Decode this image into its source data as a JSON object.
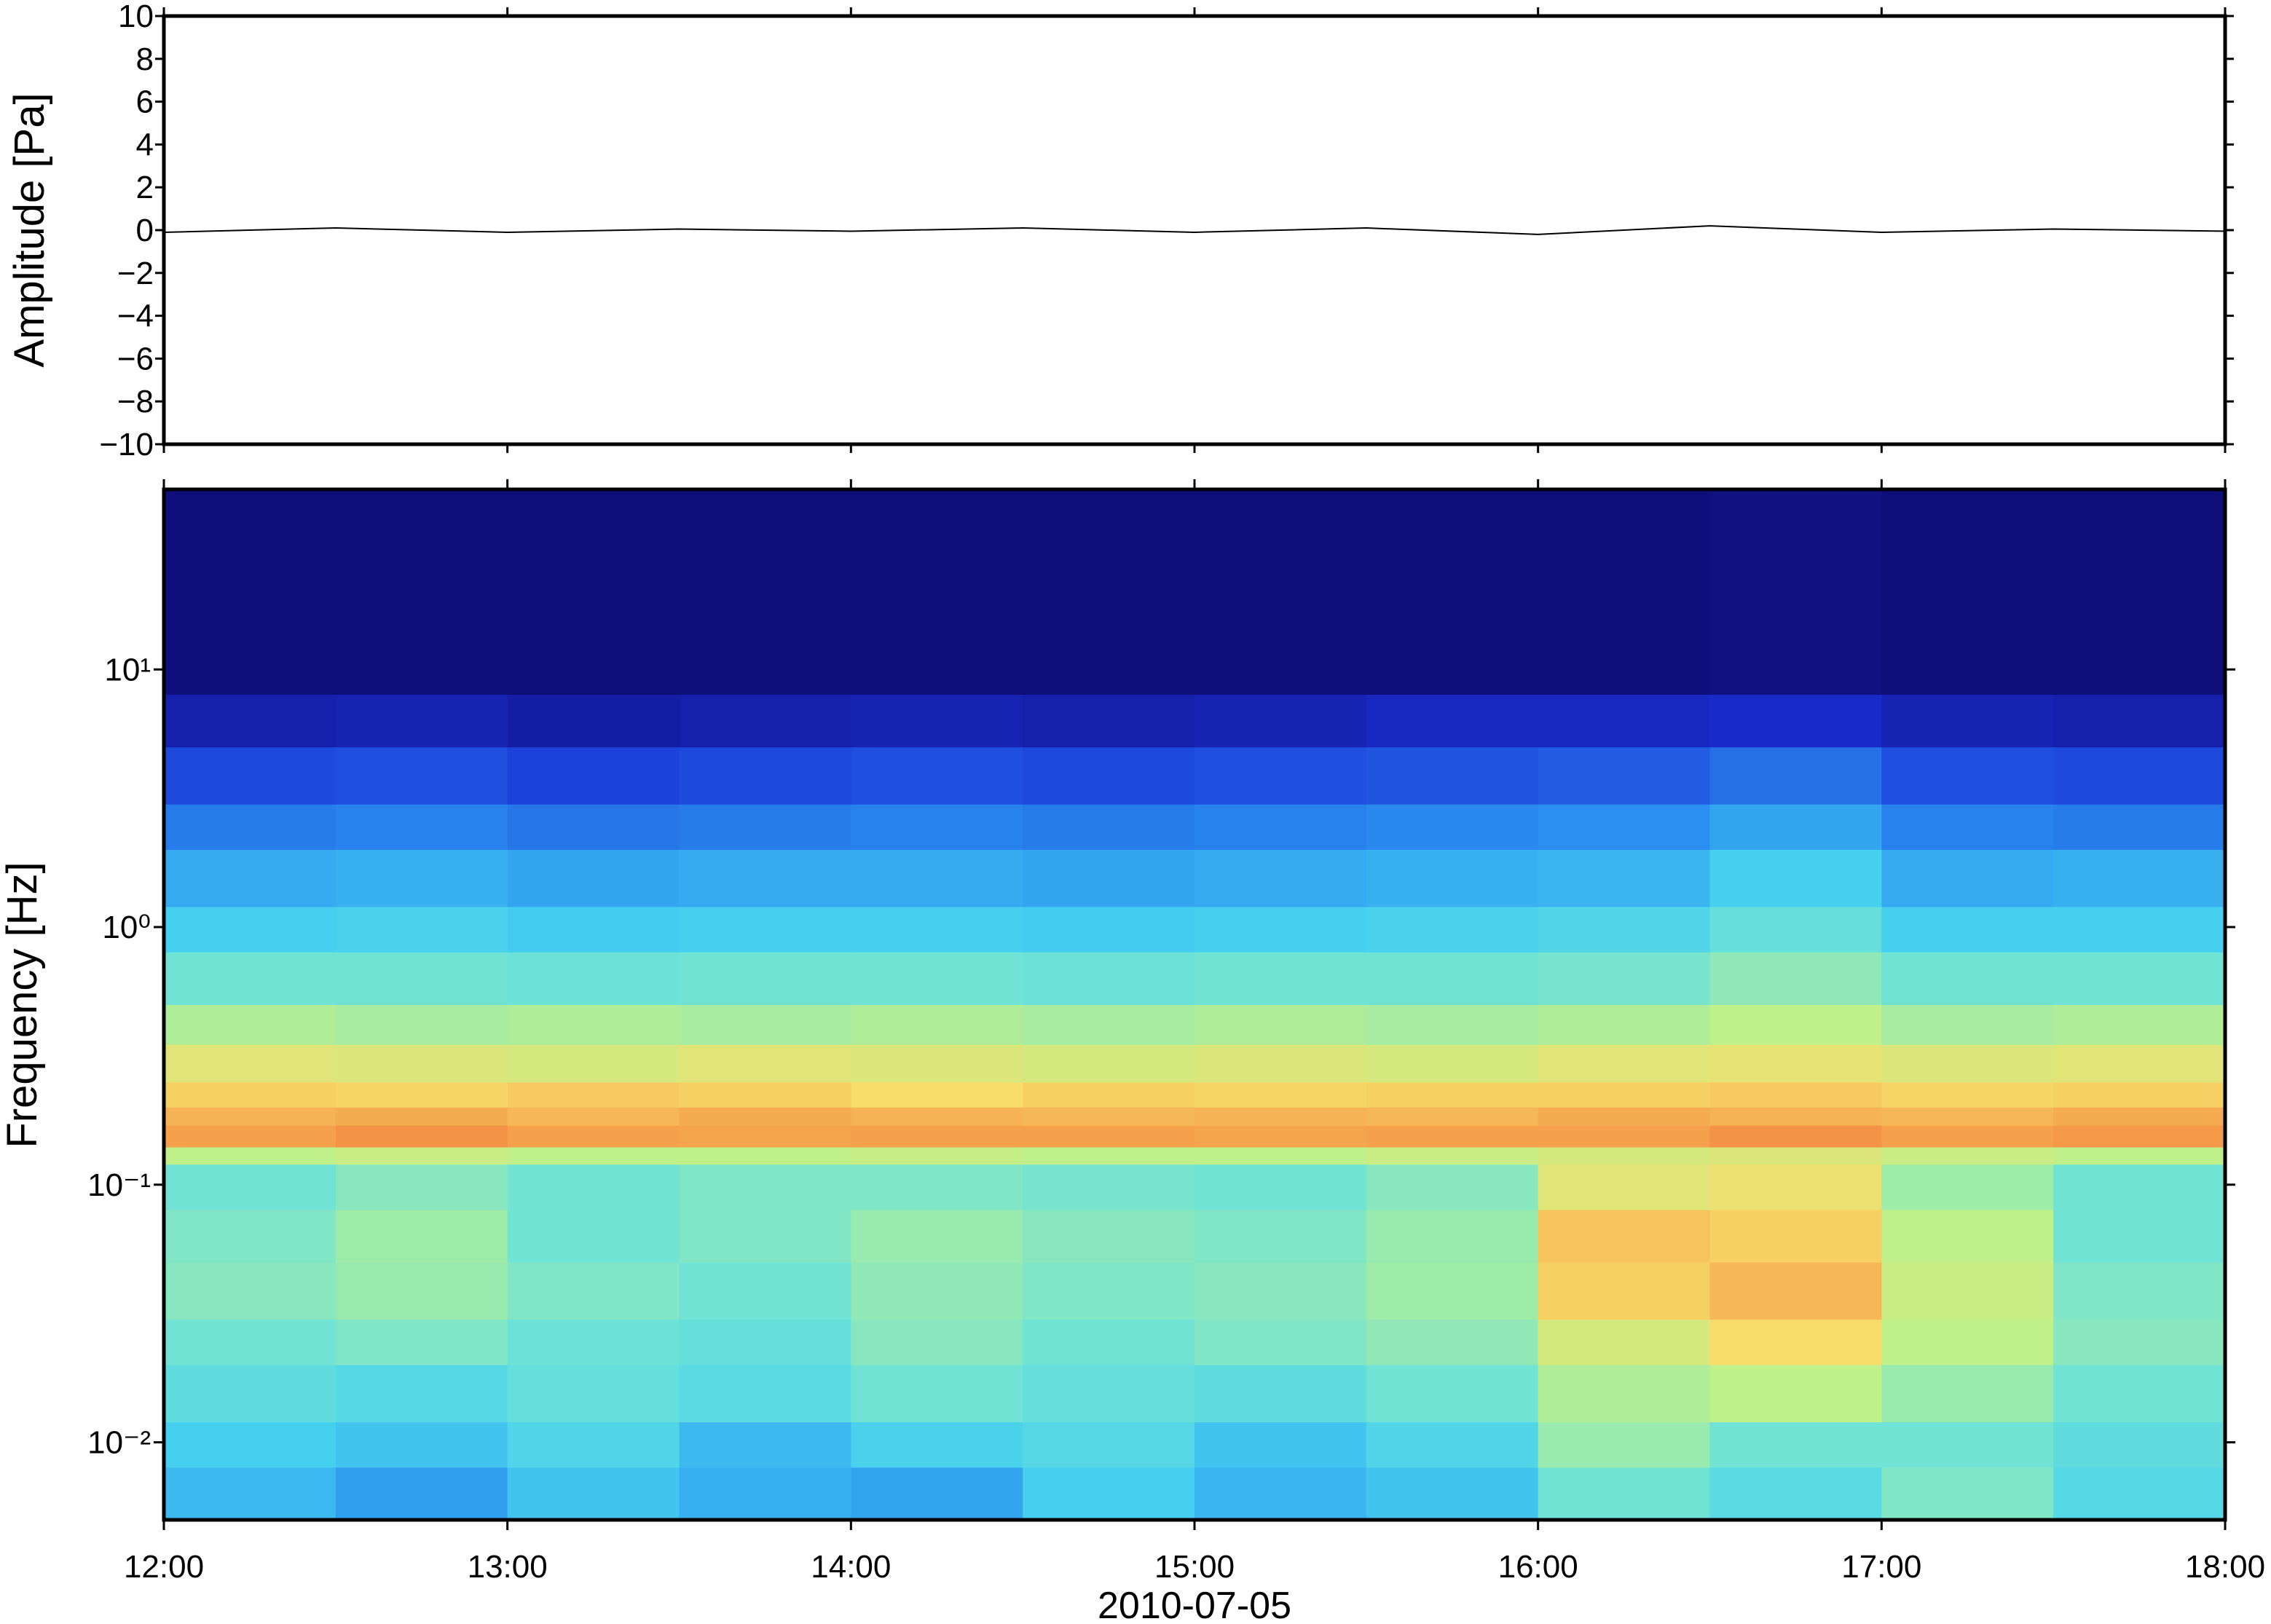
{
  "chart_data": [
    {
      "type": "line",
      "ylabel": "Amplitude [Pa]",
      "color": "#000000",
      "x": [
        12,
        12.5,
        13,
        13.5,
        14,
        14.5,
        15,
        15.5,
        16,
        16.5,
        17,
        17.5,
        18
      ],
      "values": [
        -0.1,
        0.1,
        -0.1,
        0.05,
        -0.05,
        0.1,
        -0.1,
        0.1,
        -0.2,
        0.2,
        -0.1,
        0.05,
        -0.05
      ],
      "xlim": [
        12,
        18
      ],
      "ylim": [
        -10,
        10
      ],
      "yticks": [
        {
          "value": -10,
          "label": "−10"
        },
        {
          "value": -8,
          "label": "−8"
        },
        {
          "value": -6,
          "label": "−6"
        },
        {
          "value": -4,
          "label": "−4"
        },
        {
          "value": -2,
          "label": "−2"
        },
        0,
        2,
        4,
        6,
        8,
        10
      ]
    },
    {
      "type": "heatmap",
      "ylabel": "Frequency [Hz]",
      "xlabel": "2010-07-05",
      "log_y": true,
      "xlim": [
        12,
        18
      ],
      "ylim": [
        0.005,
        50
      ],
      "xticks": [
        {
          "value": 12,
          "label": "12:00"
        },
        {
          "value": 13,
          "label": "13:00"
        },
        {
          "value": 14,
          "label": "14:00"
        },
        {
          "value": 15,
          "label": "15:00"
        },
        {
          "value": 16,
          "label": "16:00"
        },
        {
          "value": 17,
          "label": "17:00"
        },
        {
          "value": 18,
          "label": "18:00"
        }
      ],
      "yticks": [
        {
          "value": 0.01,
          "label": "10⁻²"
        },
        {
          "value": 0.1,
          "label": "10⁻¹"
        },
        {
          "value": 1,
          "label": "10⁰"
        },
        {
          "value": 10,
          "label": "10¹"
        }
      ],
      "colorscale": [
        [
          0,
          "#0d0a6e"
        ],
        [
          0.15,
          "#1a2fd6"
        ],
        [
          0.3,
          "#2a8ff0"
        ],
        [
          0.42,
          "#45d0f0"
        ],
        [
          0.5,
          "#70e3d5"
        ],
        [
          0.6,
          "#bff08a"
        ],
        [
          0.7,
          "#f7dc6a"
        ],
        [
          0.8,
          "#f5a04a"
        ],
        [
          0.9,
          "#ee5a2f"
        ],
        [
          1,
          "#c81e1e"
        ]
      ],
      "x_edges": [
        12,
        12.5,
        13,
        13.5,
        14,
        14.5,
        15,
        15.5,
        16,
        16.5,
        17,
        17.5,
        18
      ],
      "y_edges": [
        0.005,
        0.008,
        0.012,
        0.02,
        0.03,
        0.05,
        0.08,
        0.12,
        0.14,
        0.17,
        0.2,
        0.25,
        0.35,
        0.5,
        0.8,
        1.2,
        2,
        3,
        5,
        8,
        50
      ],
      "z": [
        [
          0.38,
          0.33,
          0.4,
          0.36,
          0.34,
          0.42,
          0.37,
          0.4,
          0.5,
          0.46,
          0.52,
          0.45
        ],
        [
          0.42,
          0.4,
          0.44,
          0.38,
          0.43,
          0.45,
          0.4,
          0.44,
          0.55,
          0.5,
          0.5,
          0.47
        ],
        [
          0.47,
          0.45,
          0.48,
          0.46,
          0.5,
          0.48,
          0.47,
          0.5,
          0.58,
          0.6,
          0.55,
          0.5
        ],
        [
          0.5,
          0.52,
          0.49,
          0.48,
          0.53,
          0.5,
          0.52,
          0.54,
          0.64,
          0.7,
          0.6,
          0.53
        ],
        [
          0.53,
          0.55,
          0.52,
          0.5,
          0.54,
          0.52,
          0.53,
          0.56,
          0.72,
          0.76,
          0.62,
          0.52
        ],
        [
          0.52,
          0.56,
          0.5,
          0.52,
          0.55,
          0.53,
          0.52,
          0.55,
          0.74,
          0.72,
          0.6,
          0.5
        ],
        [
          0.5,
          0.53,
          0.5,
          0.52,
          0.52,
          0.51,
          0.5,
          0.53,
          0.66,
          0.68,
          0.56,
          0.5
        ],
        [
          0.6,
          0.62,
          0.6,
          0.6,
          0.61,
          0.6,
          0.6,
          0.62,
          0.64,
          0.65,
          0.62,
          0.6
        ],
        [
          0.8,
          0.82,
          0.8,
          0.79,
          0.8,
          0.8,
          0.79,
          0.8,
          0.8,
          0.82,
          0.8,
          0.81
        ],
        [
          0.77,
          0.78,
          0.76,
          0.78,
          0.77,
          0.76,
          0.77,
          0.76,
          0.78,
          0.77,
          0.76,
          0.78
        ],
        [
          0.72,
          0.71,
          0.73,
          0.72,
          0.7,
          0.72,
          0.71,
          0.72,
          0.72,
          0.73,
          0.71,
          0.72
        ],
        [
          0.66,
          0.65,
          0.64,
          0.66,
          0.65,
          0.64,
          0.65,
          0.64,
          0.66,
          0.67,
          0.65,
          0.66
        ],
        [
          0.58,
          0.57,
          0.58,
          0.57,
          0.58,
          0.57,
          0.58,
          0.57,
          0.58,
          0.6,
          0.57,
          0.58
        ],
        [
          0.5,
          0.5,
          0.49,
          0.5,
          0.5,
          0.49,
          0.5,
          0.5,
          0.51,
          0.54,
          0.5,
          0.5
        ],
        [
          0.42,
          0.43,
          0.41,
          0.42,
          0.42,
          0.41,
          0.42,
          0.43,
          0.44,
          0.48,
          0.42,
          0.42
        ],
        [
          0.35,
          0.36,
          0.34,
          0.35,
          0.35,
          0.34,
          0.35,
          0.36,
          0.37,
          0.42,
          0.35,
          0.36
        ],
        [
          0.27,
          0.28,
          0.26,
          0.27,
          0.28,
          0.27,
          0.28,
          0.29,
          0.3,
          0.34,
          0.28,
          0.27
        ],
        [
          0.19,
          0.2,
          0.18,
          0.19,
          0.2,
          0.19,
          0.2,
          0.21,
          0.22,
          0.25,
          0.2,
          0.19
        ],
        [
          0.09,
          0.1,
          0.08,
          0.09,
          0.1,
          0.09,
          0.1,
          0.12,
          0.12,
          0.13,
          0.1,
          0.09
        ],
        [
          0.02,
          0.02,
          0.02,
          0.02,
          0.02,
          0.02,
          0.02,
          0.02,
          0.02,
          0.03,
          0.02,
          0.02
        ]
      ]
    }
  ]
}
